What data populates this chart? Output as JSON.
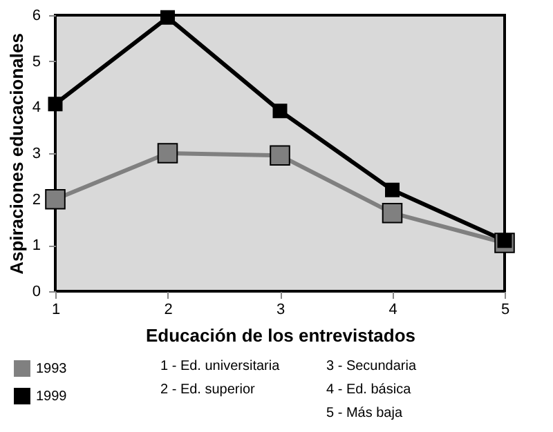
{
  "chart_data": {
    "type": "line",
    "xlabel": "Educación de los entrevistados",
    "ylabel": "Aspiraciones educacionales",
    "x": [
      1,
      2,
      3,
      4,
      5
    ],
    "series": [
      {
        "name": "1993",
        "color": "#808080",
        "values": [
          2.0,
          3.0,
          2.95,
          1.7,
          1.05
        ]
      },
      {
        "name": "1999",
        "color": "#000000",
        "values": [
          4.07,
          5.95,
          3.92,
          2.2,
          1.1
        ]
      }
    ],
    "xlim": [
      1,
      5
    ],
    "xticks": [
      1,
      2,
      3,
      4,
      5
    ],
    "ylim": [
      0,
      6
    ],
    "yticks": [
      0,
      1,
      2,
      3,
      4,
      5,
      6
    ],
    "grid": false,
    "legend": "bottom left",
    "marker": "square",
    "line_style": "solid",
    "annotations": [
      "1 - Ed. universitaria",
      "2 - Ed. superior",
      "3 - Secundaria",
      "4 - Ed. básica",
      "5 - Más baja"
    ]
  }
}
